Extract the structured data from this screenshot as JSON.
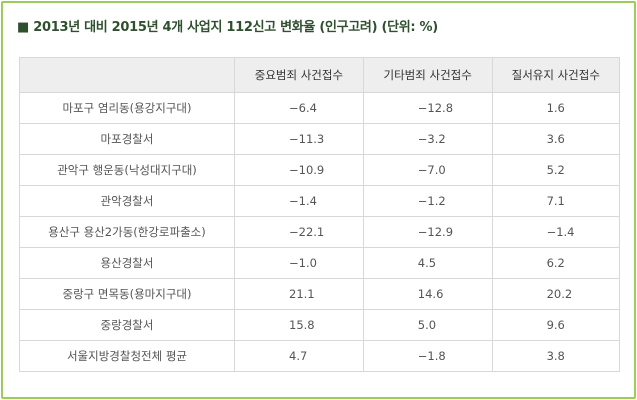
{
  "title": "■ 2013년 대비 2015년 4개 사업지 112신고 변화율 (인구고려) (단위: %)",
  "table": {
    "header": [
      "",
      "중요범죄 사건접수",
      "기타범죄 사건접수",
      "질서유지 사건접수"
    ],
    "rows": [
      [
        "마포구 염리동(용강지구대)",
        "−6.4",
        "−12.8",
        "1.6"
      ],
      [
        "마포경찰서",
        "−11.3",
        "−3.2",
        "3.6"
      ],
      [
        "관악구 행운동(낙성대지구대)",
        "−10.9",
        "−7.0",
        "5.2"
      ],
      [
        "관악경찰서",
        "−1.4",
        "−1.2",
        "7.1"
      ],
      [
        "용산구 용산2가동(한강로파출소)",
        "−22.1",
        "−12.9",
        "−1.4"
      ],
      [
        "용산경찰서",
        "−1.0",
        "4.5",
        "6.2"
      ],
      [
        "중랑구 면목동(용마지구대)",
        "21.1",
        "14.6",
        "20.2"
      ],
      [
        "중랑경찰서",
        "15.8",
        "5.0",
        "9.6"
      ],
      [
        "서울지방경찰청전체 평균",
        "4.7",
        "−1.8",
        "3.8"
      ]
    ]
  }
}
